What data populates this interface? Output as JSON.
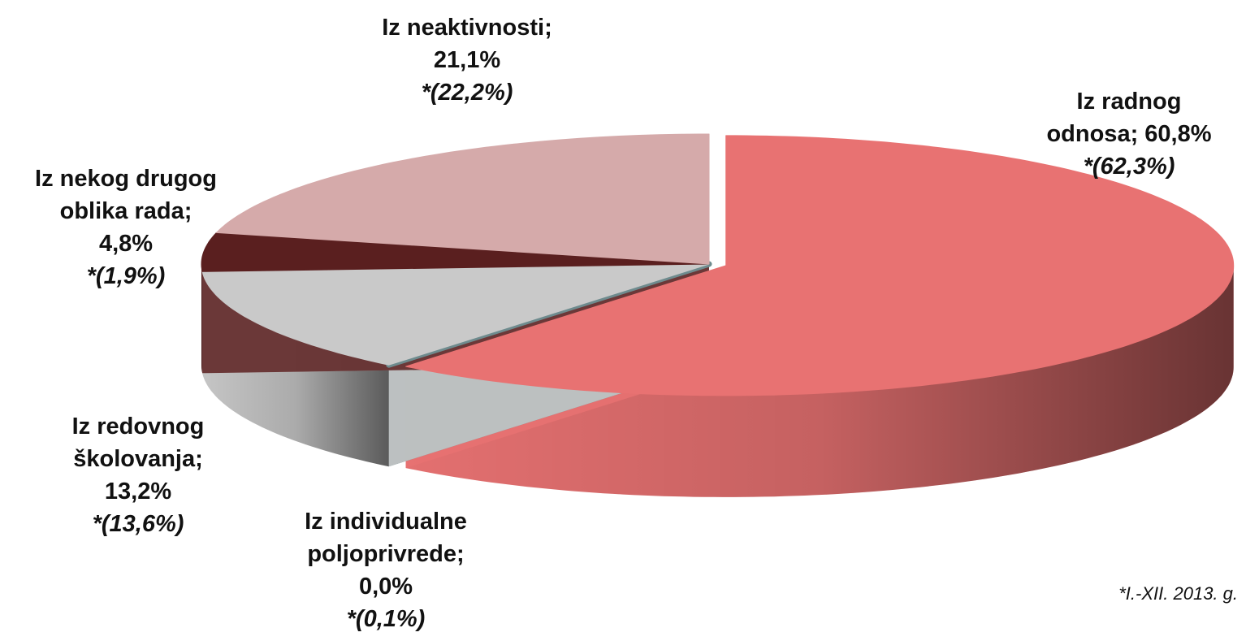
{
  "chart_data": {
    "type": "pie3d",
    "categories": [
      "Iz radnog odnosa;",
      "Iz individualne poljoprivrede;",
      "Iz redovnog školovanja;",
      "Iz nekog drugog oblika rada;",
      "Iz neaktivnosti;"
    ],
    "values": [
      60.8,
      0.0,
      13.2,
      4.8,
      21.1
    ],
    "value_labels": [
      "60,8%",
      "0,0%",
      "13,2%",
      "4,8%",
      "21,1%"
    ],
    "colors": [
      "#e87272",
      "#6e8b8e",
      "#c9c9c9",
      "#5a1f1f",
      "#d5aaaa"
    ],
    "comparison": {
      "values": [
        62.3,
        0.1,
        13.6,
        1.9,
        22.2
      ],
      "value_labels": [
        "*(62,3%)",
        "*(0,1%)",
        "*(13,6%)",
        "*(1,9%)",
        "*(22,2%)"
      ]
    },
    "footnote": "*I.-XII. 2013. g."
  }
}
